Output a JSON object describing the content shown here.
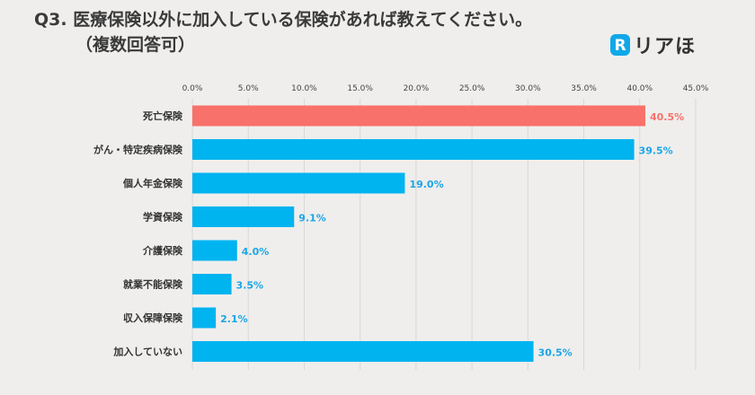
{
  "title_line1": "Q3. 医療保険以外に加入している保険があれば教えてください。",
  "title_line2": "（複数回答可）",
  "logo": {
    "text": "リアほ",
    "letter": "R",
    "color": "#10a8e8"
  },
  "colors": {
    "highlight": "#f8716a",
    "bar": "#00b4f0",
    "value_highlight": "#f8716a",
    "value": "#1aa6e8"
  },
  "chart_data": {
    "type": "bar",
    "orientation": "horizontal",
    "categories": [
      "死亡保険",
      "がん・特定疾病保険",
      "個人年金保険",
      "学資保険",
      "介護保険",
      "就業不能保険",
      "収入保障保険",
      "加入していない"
    ],
    "values": [
      40.5,
      39.5,
      19.0,
      9.1,
      4.0,
      3.5,
      2.1,
      30.5
    ],
    "value_labels": [
      "40.5%",
      "39.5%",
      "19.0%",
      "9.1%",
      "4.0%",
      "3.5%",
      "2.1%",
      "30.5%"
    ],
    "highlight_index": 0,
    "xlim": [
      0,
      45
    ],
    "xticks": [
      0,
      5,
      10,
      15,
      20,
      25,
      30,
      35,
      40,
      45
    ],
    "xtick_labels": [
      "0.0%",
      "5.0%",
      "10.0%",
      "15.0%",
      "20.0%",
      "25.0%",
      "30.0%",
      "35.0%",
      "40.0%",
      "45.0%"
    ],
    "axis_position": "top",
    "grid": true
  }
}
